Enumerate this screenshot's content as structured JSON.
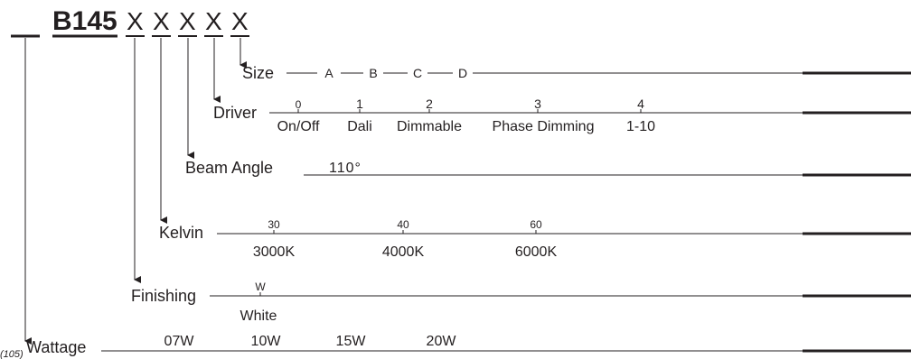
{
  "header": {
    "prefix": "B145",
    "slots": [
      "X",
      "X",
      "X",
      "X",
      "X"
    ]
  },
  "rows": {
    "size": {
      "label": "Size",
      "options": [
        "A",
        "B",
        "C",
        "D"
      ]
    },
    "driver": {
      "label": "Driver",
      "codes": [
        "0",
        "1",
        "2",
        "3",
        "4"
      ],
      "names": [
        "On/Off",
        "Dali",
        "Dimmable",
        "Phase Dimming",
        "1-10"
      ]
    },
    "beam": {
      "label": "Beam Angle",
      "value": "110°"
    },
    "kelvin": {
      "label": "Kelvin",
      "codes": [
        "30",
        "40",
        "60"
      ],
      "names": [
        "3000K",
        "4000K",
        "6000K"
      ]
    },
    "finishing": {
      "label": "Finishing",
      "codes": [
        "W"
      ],
      "names": [
        "White"
      ]
    },
    "wattage": {
      "label": "Wattage",
      "note": "(105)",
      "options": [
        "07W",
        "10W",
        "15W",
        "20W"
      ]
    }
  }
}
